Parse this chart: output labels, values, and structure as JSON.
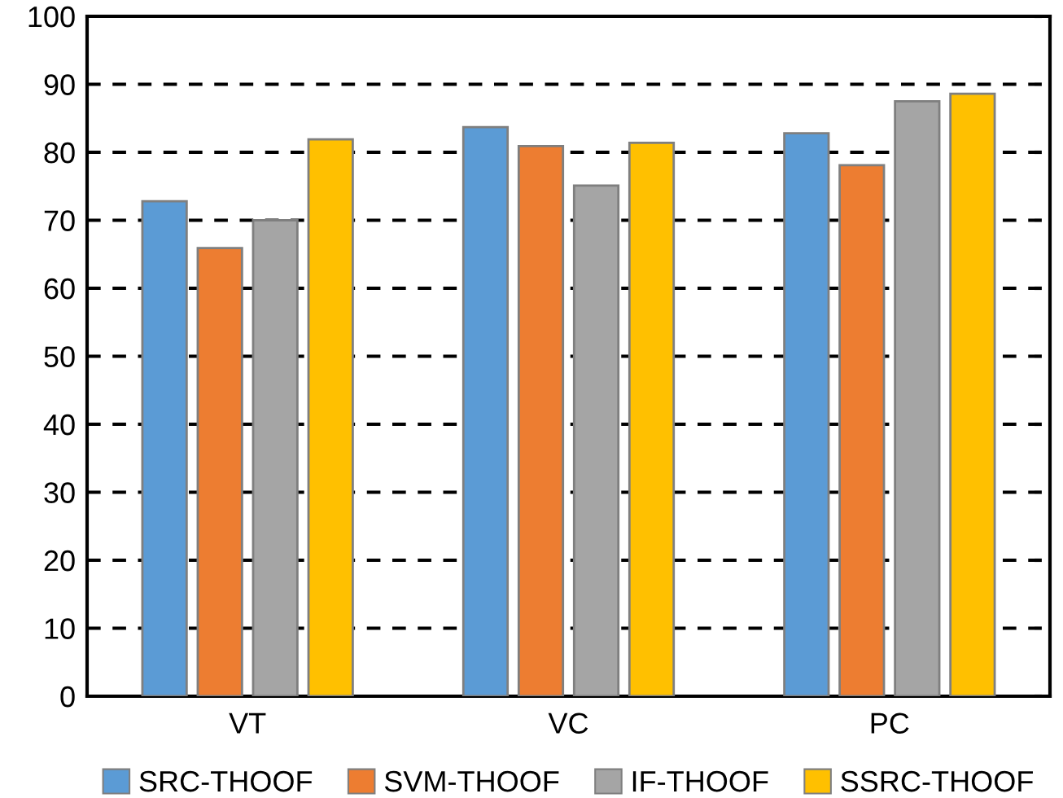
{
  "chart_data": {
    "type": "bar",
    "categories": [
      "VT",
      "VC",
      "PC"
    ],
    "series": [
      {
        "name": "SRC-THOOF",
        "color": "#5b9bd5",
        "values": [
          72.8,
          83.7,
          82.8
        ]
      },
      {
        "name": "SVM-THOOF",
        "color": "#ed7d31",
        "values": [
          65.9,
          80.9,
          78.1
        ]
      },
      {
        "name": "IF-THOOF",
        "color": "#a5a5a5",
        "values": [
          70.0,
          75.1,
          87.5
        ]
      },
      {
        "name": "SSRC-THOOF",
        "color": "#ffc000",
        "values": [
          81.9,
          81.4,
          88.6
        ]
      }
    ],
    "ylim": [
      0,
      100
    ],
    "yticks": [
      0,
      10,
      20,
      30,
      40,
      50,
      60,
      70,
      80,
      90,
      100
    ],
    "grid": "y",
    "line_style": "dashed",
    "legend": "bottom"
  }
}
